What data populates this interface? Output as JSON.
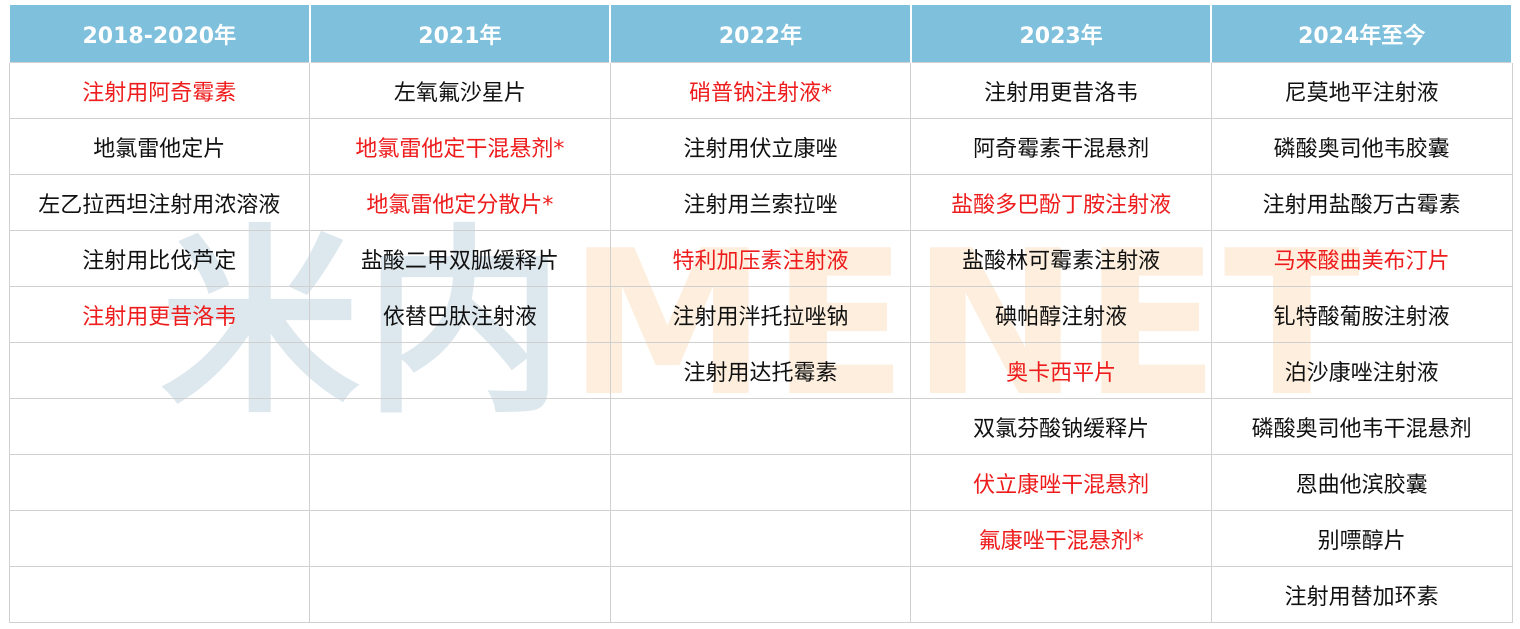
{
  "watermark": [
    "米内",
    "MENET"
  ],
  "table": {
    "header": [
      "2018-2020年",
      "2021年",
      "2022年",
      "2023年",
      "2024年至今"
    ],
    "columns": [
      [
        {
          "text": "注射用阿奇霉素",
          "red": true
        },
        {
          "text": "地氯雷他定片",
          "red": false
        },
        {
          "text": "左乙拉西坦注射用浓溶液",
          "red": false
        },
        {
          "text": "注射用比伐芦定",
          "red": false
        },
        {
          "text": "注射用更昔洛韦",
          "red": true
        }
      ],
      [
        {
          "text": "左氧氟沙星片",
          "red": false
        },
        {
          "text": "地氯雷他定干混悬剂*",
          "red": true
        },
        {
          "text": "地氯雷他定分散片*",
          "red": true
        },
        {
          "text": "盐酸二甲双胍缓释片",
          "red": false
        },
        {
          "text": "依替巴肽注射液",
          "red": false
        }
      ],
      [
        {
          "text": "硝普钠注射液*",
          "red": true
        },
        {
          "text": "注射用伏立康唑",
          "red": false
        },
        {
          "text": "注射用兰索拉唑",
          "red": false
        },
        {
          "text": "特利加压素注射液",
          "red": true
        },
        {
          "text": "注射用泮托拉唑钠",
          "red": false
        },
        {
          "text": "注射用达托霉素",
          "red": false
        }
      ],
      [
        {
          "text": "注射用更昔洛韦",
          "red": false
        },
        {
          "text": "阿奇霉素干混悬剂",
          "red": false
        },
        {
          "text": "盐酸多巴酚丁胺注射液",
          "red": true
        },
        {
          "text": "盐酸林可霉素注射液",
          "red": false
        },
        {
          "text": "碘帕醇注射液",
          "red": false
        },
        {
          "text": "奥卡西平片",
          "red": true
        },
        {
          "text": "双氯芬酸钠缓释片",
          "red": false
        },
        {
          "text": "伏立康唑干混悬剂",
          "red": true
        },
        {
          "text": "氟康唑干混悬剂*",
          "red": true
        }
      ],
      [
        {
          "text": "尼莫地平注射液",
          "red": false
        },
        {
          "text": "磷酸奥司他韦胶囊",
          "red": false
        },
        {
          "text": "注射用盐酸万古霉素",
          "red": false
        },
        {
          "text": "马来酸曲美布汀片",
          "red": true
        },
        {
          "text": "钆特酸葡胺注射液",
          "red": false
        },
        {
          "text": "泊沙康唑注射液",
          "red": false
        },
        {
          "text": "磷酸奥司他韦干混悬剂",
          "red": false
        },
        {
          "text": "恩曲他滨胶囊",
          "red": false
        },
        {
          "text": "别嘌醇片",
          "red": false
        },
        {
          "text": "注射用替加环素",
          "red": false
        }
      ]
    ]
  }
}
